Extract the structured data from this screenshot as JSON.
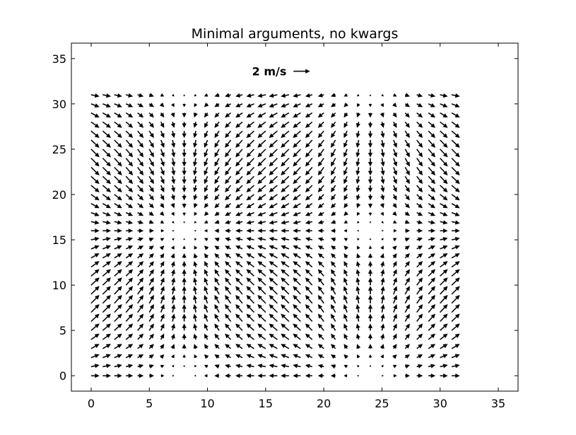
{
  "chart_data": {
    "type": "quiver",
    "title": "Minimal arguments, no kwargs",
    "xlabel": "",
    "ylabel": "",
    "xlim": [
      -1.7,
      36.7
    ],
    "ylim": [
      -1.7,
      36.7
    ],
    "xticks": [
      0,
      5,
      10,
      15,
      20,
      25,
      30,
      35
    ],
    "yticks": [
      0,
      5,
      10,
      15,
      20,
      25,
      30,
      35
    ],
    "grid": false,
    "x": [
      0,
      1,
      2,
      3,
      4,
      5,
      6,
      7,
      8,
      9,
      10,
      11,
      12,
      13,
      14,
      15,
      16,
      17,
      18,
      19,
      20,
      21,
      22,
      23,
      24,
      25,
      26,
      27,
      28,
      29,
      30,
      31
    ],
    "y": [
      0,
      1,
      2,
      3,
      4,
      5,
      6,
      7,
      8,
      9,
      10,
      11,
      12,
      13,
      14,
      15,
      16,
      17,
      18,
      19,
      20,
      21,
      22,
      23,
      24,
      25,
      26,
      27,
      28,
      29,
      30,
      31
    ],
    "field": {
      "u": "cos(2*pi*x/32)",
      "v": "sin(2*pi*y/32)",
      "x_range": [
        0,
        31
      ],
      "y_range": [
        0,
        31
      ],
      "step": 1
    },
    "quiverkey": {
      "label": "2 m/s",
      "magnitude": 2,
      "x": 18.8,
      "y": 33.6
    }
  }
}
